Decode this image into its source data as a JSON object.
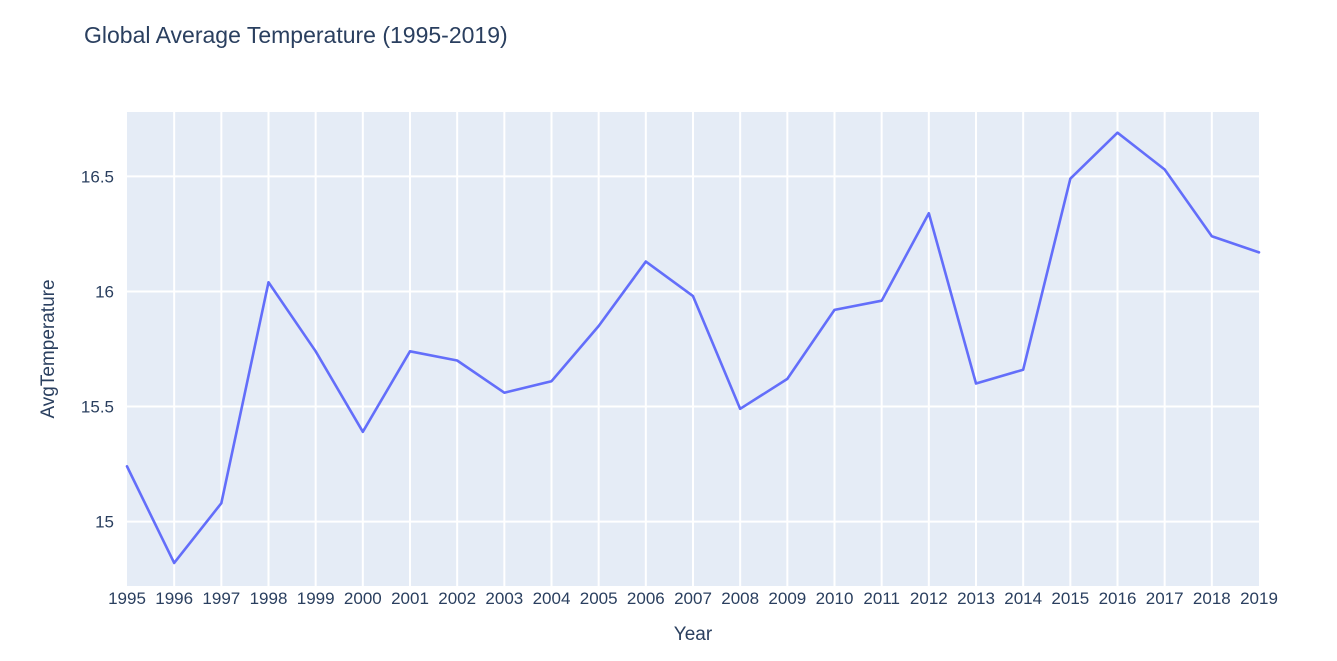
{
  "chart_data": {
    "type": "line",
    "title": "Global Average Temperature (1995-2019)",
    "xlabel": "Year",
    "ylabel": "AvgTemperature",
    "x": [
      1995,
      1996,
      1997,
      1998,
      1999,
      2000,
      2001,
      2002,
      2003,
      2004,
      2005,
      2006,
      2007,
      2008,
      2009,
      2010,
      2011,
      2012,
      2013,
      2014,
      2015,
      2016,
      2017,
      2018,
      2019
    ],
    "series": [
      {
        "values": [
          15.24,
          14.82,
          15.08,
          16.04,
          15.74,
          15.39,
          15.74,
          15.7,
          15.56,
          15.61,
          15.85,
          16.13,
          15.98,
          15.49,
          15.62,
          15.92,
          15.96,
          16.34,
          15.6,
          15.66,
          16.49,
          16.69,
          16.53,
          16.24,
          16.17
        ]
      }
    ],
    "xlim": [
      1995,
      2019
    ],
    "ylim": [
      14.72,
      16.78
    ],
    "yticks": [
      15,
      15.5,
      16,
      16.5
    ],
    "ytick_labels": [
      "15",
      "15.5",
      "16",
      "16.5"
    ],
    "grid": true,
    "colors": {
      "line": "#636efa",
      "plot_bg": "#e5ecf6",
      "grid": "#ffffff",
      "text": "#2a3f5f"
    }
  }
}
